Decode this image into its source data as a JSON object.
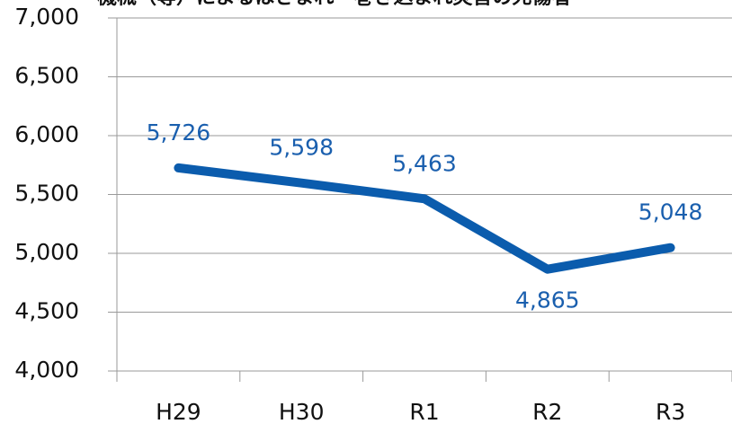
{
  "chart_data": {
    "type": "line",
    "title": "機械（等）によるはさまれ・巻き込まれ災害の死傷者",
    "categories": [
      "H29",
      "H30",
      "R1",
      "R2",
      "R3"
    ],
    "series": [
      {
        "name": "死傷者",
        "color": "#0b5cad",
        "values": [
          5726,
          5598,
          5463,
          4865,
          5048
        ],
        "value_labels": [
          "5,726",
          "5,598",
          "5,463",
          "4,865",
          "5,048"
        ]
      }
    ],
    "ylim": [
      4000,
      7000
    ],
    "yticks": [
      {
        "value": 4000,
        "label": "4,000"
      },
      {
        "value": 4500,
        "label": "4,500"
      },
      {
        "value": 5000,
        "label": "5,000"
      },
      {
        "value": 5500,
        "label": "5,500"
      },
      {
        "value": 6000,
        "label": "6,000"
      },
      {
        "value": 6500,
        "label": "6,500"
      },
      {
        "value": 7000,
        "label": "7,000"
      }
    ],
    "grid": true
  }
}
